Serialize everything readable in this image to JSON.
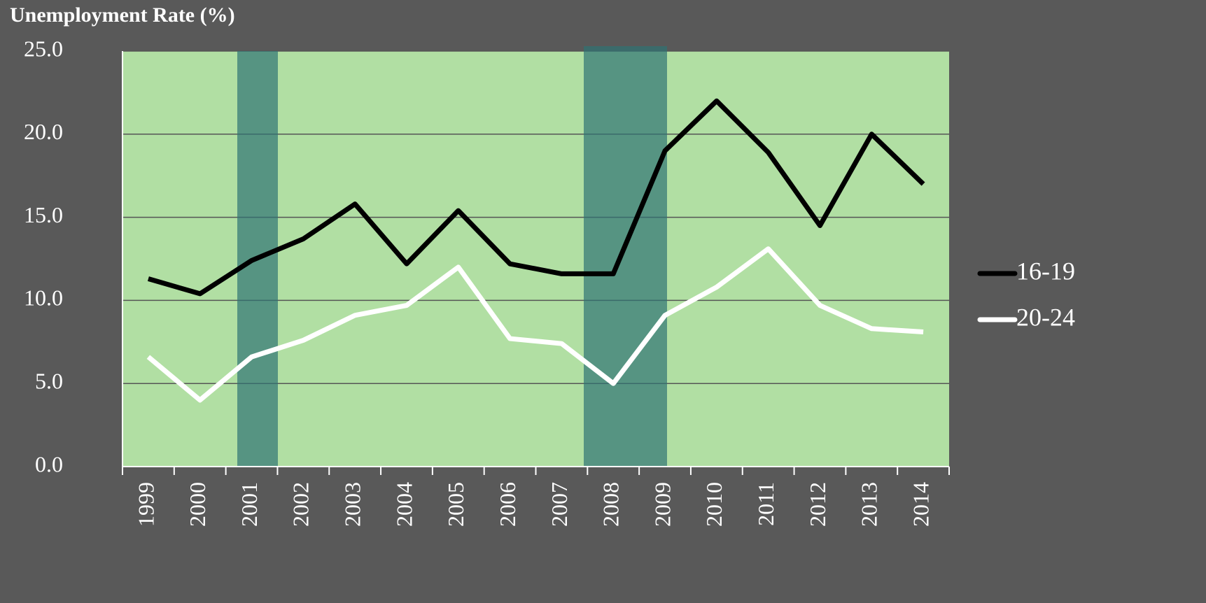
{
  "chart_data": {
    "type": "line",
    "title": "Unemployment Rate (%)",
    "categories": [
      "1999",
      "2000",
      "2001",
      "2002",
      "2003",
      "2004",
      "2005",
      "2006",
      "2007",
      "2008",
      "2009",
      "2010",
      "2011",
      "2012",
      "2013",
      "2014"
    ],
    "series": [
      {
        "name": "16-19",
        "color": "#000000",
        "values": [
          11.3,
          10.4,
          12.4,
          13.7,
          15.8,
          12.2,
          15.4,
          12.2,
          11.6,
          11.6,
          19.0,
          22.0,
          18.9,
          14.5,
          20.0,
          17.0
        ]
      },
      {
        "name": "20-24",
        "color": "#ffffff",
        "values": [
          6.6,
          4.0,
          6.6,
          7.6,
          9.1,
          9.7,
          12.0,
          7.7,
          7.4,
          5.0,
          9.1,
          10.8,
          13.1,
          9.7,
          8.3,
          8.1
        ]
      }
    ],
    "ylim": [
      0,
      25
    ],
    "yticks": [
      {
        "value": 0,
        "label": "0.0"
      },
      {
        "value": 5,
        "label": "5.0"
      },
      {
        "value": 10,
        "label": "10.0"
      },
      {
        "value": 15,
        "label": "15.0"
      },
      {
        "value": 20,
        "label": "20.0"
      },
      {
        "value": 25,
        "label": "25.0"
      }
    ],
    "grid": true,
    "legend": "right"
  }
}
